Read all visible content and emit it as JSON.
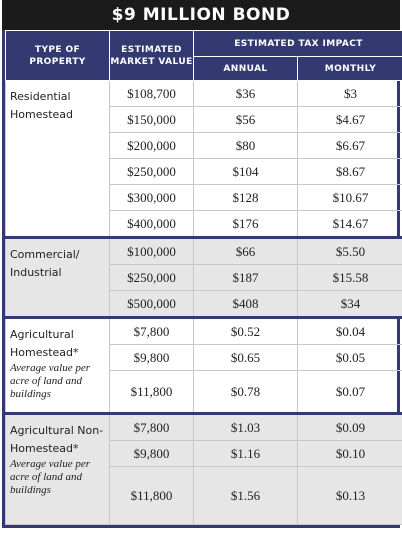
{
  "title": "$9 MILLION BOND",
  "headers": {
    "type": "TYPE OF PROPERTY",
    "value": "ESTIMATED MARKET VALUE",
    "impact": "ESTIMATED TAX IMPACT",
    "annual": "ANNUAL",
    "monthly": "MONTHLY"
  },
  "groups": [
    {
      "label": "Residential Homestead",
      "note": "",
      "shaded": false,
      "rows": [
        {
          "value": "$108,700",
          "annual": "$36",
          "monthly": "$3"
        },
        {
          "value": "$150,000",
          "annual": "$56",
          "monthly": "$4.67"
        },
        {
          "value": "$200,000",
          "annual": "$80",
          "monthly": "$6.67"
        },
        {
          "value": "$250,000",
          "annual": "$104",
          "monthly": "$8.67"
        },
        {
          "value": "$300,000",
          "annual": "$128",
          "monthly": "$10.67"
        },
        {
          "value": "$400,000",
          "annual": "$176",
          "monthly": "$14.67"
        }
      ]
    },
    {
      "label": "Commercial/ Industrial",
      "note": "",
      "shaded": true,
      "rows": [
        {
          "value": "$100,000",
          "annual": "$66",
          "monthly": "$5.50"
        },
        {
          "value": "$250,000",
          "annual": "$187",
          "monthly": "$15.58"
        },
        {
          "value": "$500,000",
          "annual": "$408",
          "monthly": "$34"
        }
      ]
    },
    {
      "label": "Agricultural Homestead*",
      "note": "Average value per acre of land and buildings",
      "shaded": false,
      "rows": [
        {
          "value": "$7,800",
          "annual": "$0.52",
          "monthly": "$0.04"
        },
        {
          "value": "$9,800",
          "annual": "$0.65",
          "monthly": "$0.05"
        },
        {
          "value": "$11,800",
          "annual": "$0.78",
          "monthly": "$0.07"
        }
      ]
    },
    {
      "label": "Agricultural Non-Homestead*",
      "note": "Average value per acre of land and buildings",
      "shaded": true,
      "rows": [
        {
          "value": "$7,800",
          "annual": "$1.03",
          "monthly": "$0.09"
        },
        {
          "value": "$9,800",
          "annual": "$1.16",
          "monthly": "$0.10"
        },
        {
          "value": "$11,800",
          "annual": "$1.56",
          "monthly": "$0.13"
        }
      ]
    }
  ]
}
